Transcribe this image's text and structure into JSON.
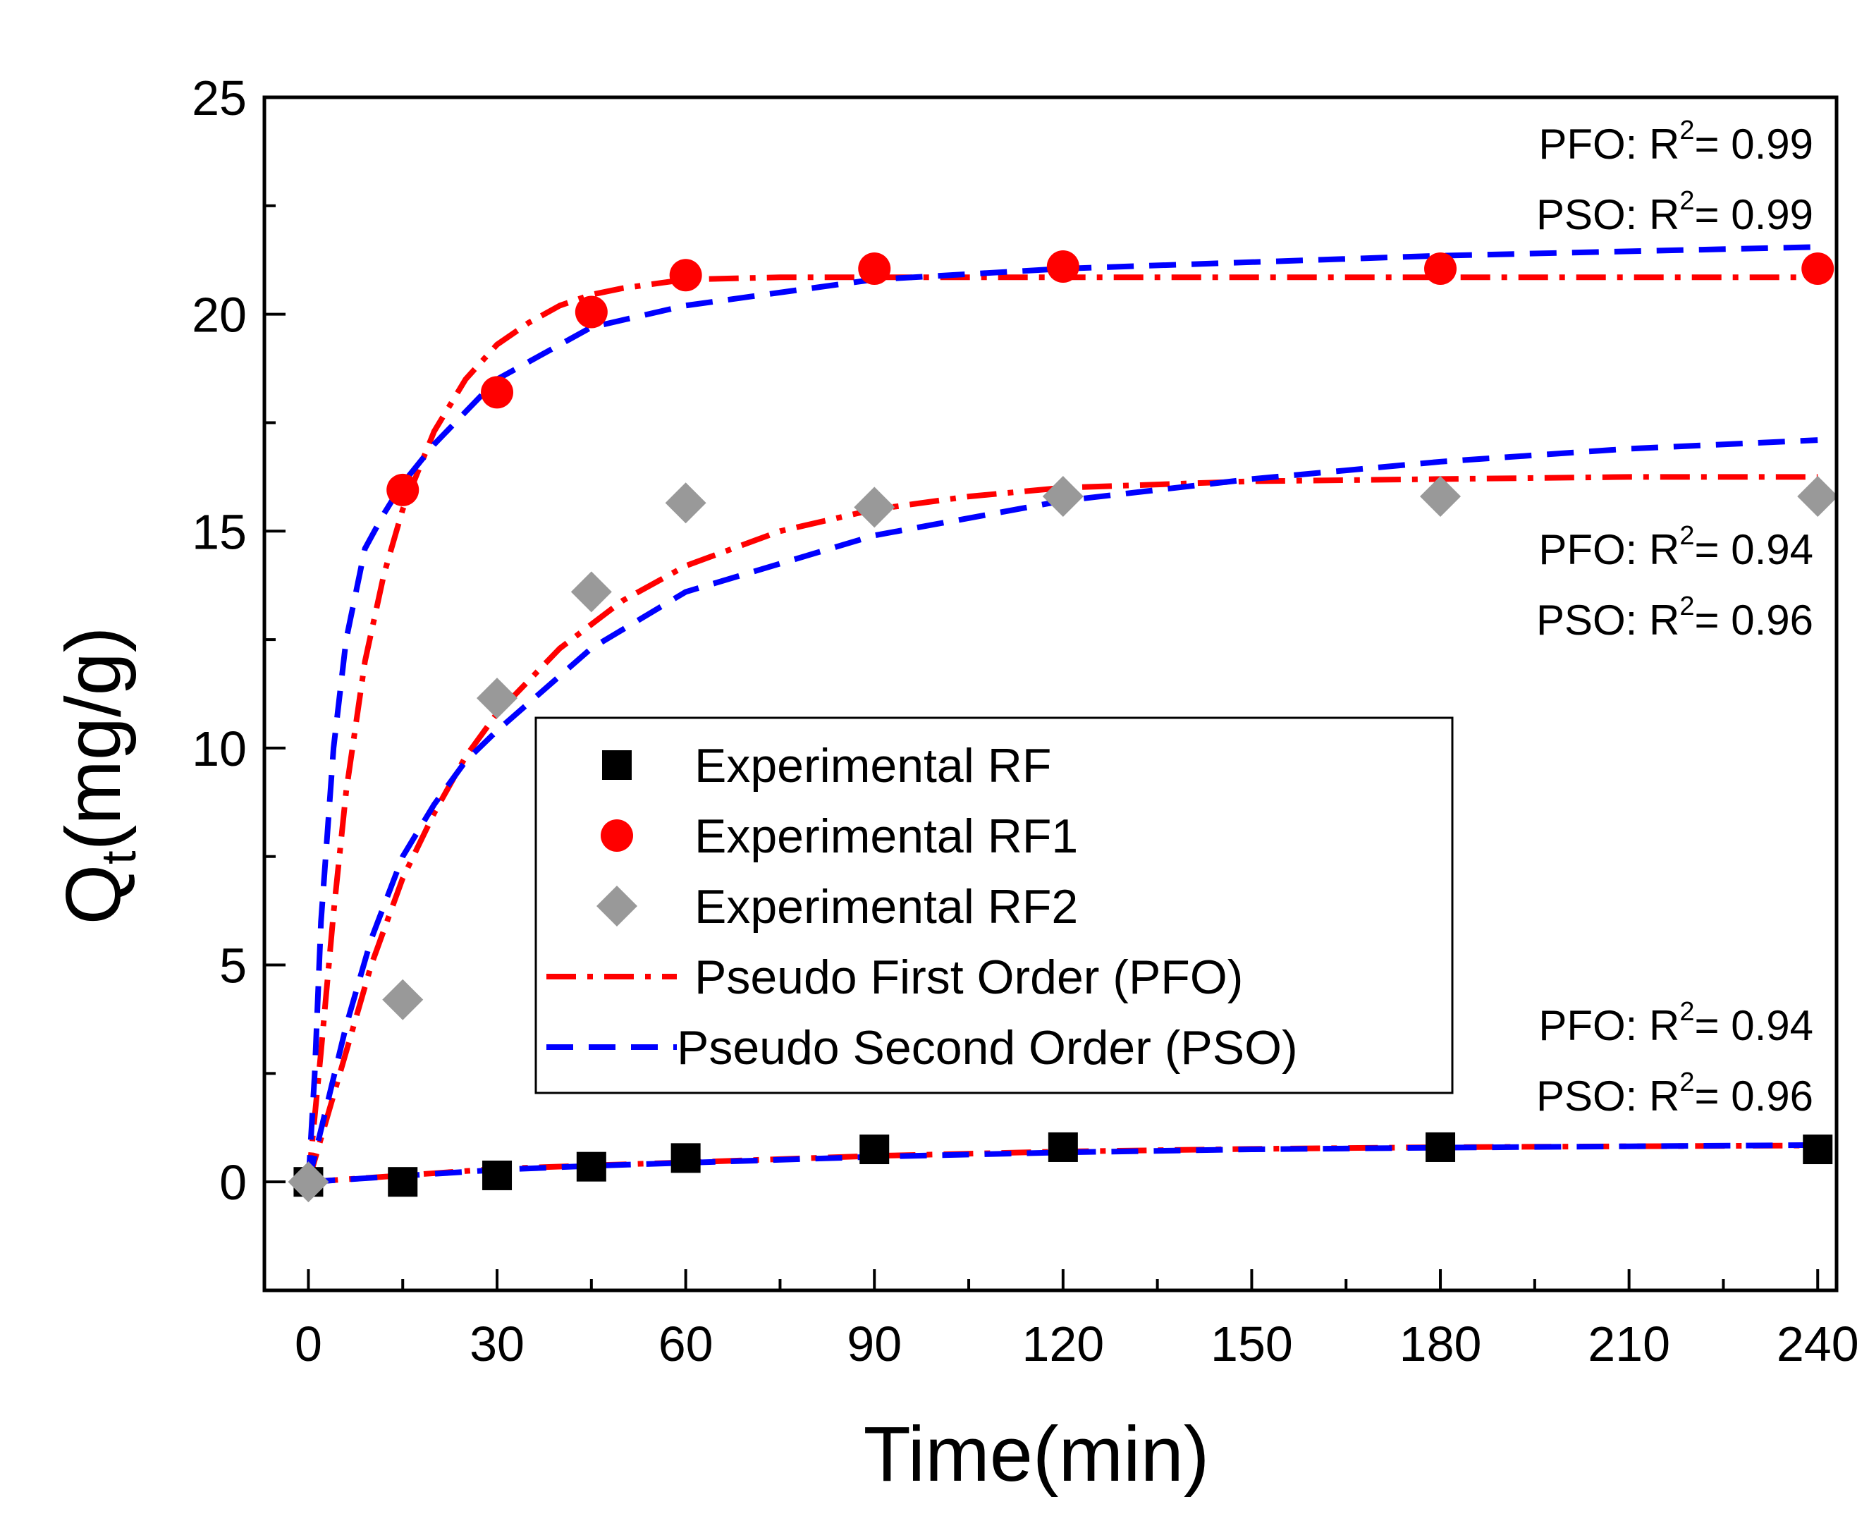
{
  "chart_data": {
    "type": "scatter",
    "xlabel": "Time(min)",
    "ylabel": {
      "main": "Q",
      "sub": "t",
      "rest": "(mg/g)"
    },
    "xlim": [
      -7,
      243
    ],
    "ylim": [
      -2.5,
      25
    ],
    "xticks": [
      0,
      30,
      60,
      90,
      120,
      150,
      180,
      210,
      240
    ],
    "yticks": [
      0,
      5,
      10,
      15,
      20,
      25
    ],
    "grid": false,
    "legend_position": "center",
    "series": [
      {
        "name": "Experimental RF",
        "marker": "square",
        "color": "#000000",
        "x": [
          0,
          15,
          30,
          45,
          60,
          90,
          120,
          180,
          240
        ],
        "y": [
          0,
          0.0,
          0.15,
          0.35,
          0.55,
          0.75,
          0.8,
          0.8,
          0.75
        ]
      },
      {
        "name": "Experimental RF1",
        "marker": "circle",
        "color": "#ff0000",
        "x": [
          15,
          30,
          45,
          60,
          90,
          120,
          180,
          240
        ],
        "y": [
          15.95,
          18.2,
          20.05,
          20.9,
          21.05,
          21.1,
          21.05,
          21.05
        ]
      },
      {
        "name": "Experimental RF2",
        "marker": "diamond",
        "color": "#999999",
        "x": [
          0,
          15,
          30,
          45,
          60,
          90,
          120,
          180,
          240
        ],
        "y": [
          0,
          4.2,
          11.15,
          13.6,
          15.65,
          15.55,
          15.8,
          15.8,
          15.8
        ]
      }
    ],
    "fit_legend": [
      {
        "name": "Pseudo First Order (PFO)",
        "color": "#ff0000",
        "style": "dash-dot"
      },
      {
        "name": "Pseudo Second Order (PSO)",
        "color": "#0000ff",
        "style": "dashed"
      }
    ],
    "fits": [
      {
        "model": "PFO",
        "dataset": "RF1",
        "color": "#ff0000",
        "style": "dash-dot",
        "x": [
          0,
          2,
          4,
          6,
          9,
          12,
          15,
          20,
          25,
          30,
          35,
          40,
          45,
          50,
          60,
          75,
          90,
          120,
          150,
          180,
          210,
          240
        ],
        "y": [
          0,
          3.0,
          6.2,
          9.0,
          12.0,
          14.0,
          15.5,
          17.3,
          18.5,
          19.3,
          19.8,
          20.2,
          20.45,
          20.6,
          20.8,
          20.85,
          20.85,
          20.85,
          20.85,
          20.85,
          20.85,
          20.85
        ]
      },
      {
        "model": "PSO",
        "dataset": "RF1",
        "color": "#0000ff",
        "style": "dashed",
        "x": [
          0,
          1,
          2,
          4,
          6,
          9,
          12,
          15,
          20,
          30,
          45,
          60,
          90,
          120,
          180,
          240
        ],
        "y": [
          0,
          2.5,
          6.0,
          10.0,
          12.5,
          14.6,
          15.4,
          16.1,
          17.0,
          18.5,
          19.7,
          20.2,
          20.8,
          21.05,
          21.35,
          21.55
        ]
      },
      {
        "model": "PFO",
        "dataset": "RF2",
        "color": "#ff0000",
        "style": "dash-dot",
        "x": [
          0,
          3,
          6,
          10,
          15,
          20,
          25,
          30,
          40,
          50,
          60,
          75,
          90,
          105,
          120,
          150,
          180,
          210,
          240
        ],
        "y": [
          0,
          1.5,
          3.0,
          5.0,
          7.0,
          8.5,
          9.8,
          10.8,
          12.3,
          13.4,
          14.2,
          15.0,
          15.5,
          15.8,
          16.0,
          16.15,
          16.2,
          16.25,
          16.25
        ]
      },
      {
        "model": "PSO",
        "dataset": "RF2",
        "color": "#0000ff",
        "style": "dashed",
        "x": [
          0,
          3,
          6,
          10,
          15,
          20,
          25,
          30,
          45,
          60,
          90,
          120,
          150,
          180,
          210,
          240
        ],
        "y": [
          0,
          1.8,
          3.6,
          5.6,
          7.5,
          8.7,
          9.7,
          10.4,
          12.3,
          13.6,
          14.9,
          15.7,
          16.2,
          16.6,
          16.9,
          17.1
        ]
      },
      {
        "model": "PFO",
        "dataset": "RF",
        "color": "#ff0000",
        "style": "dash-dot",
        "x": [
          0,
          15,
          30,
          45,
          60,
          90,
          120,
          150,
          180,
          210,
          240
        ],
        "y": [
          0,
          0.15,
          0.3,
          0.38,
          0.45,
          0.6,
          0.7,
          0.76,
          0.8,
          0.82,
          0.84
        ]
      },
      {
        "model": "PSO",
        "dataset": "RF",
        "color": "#0000ff",
        "style": "dashed",
        "x": [
          0,
          15,
          30,
          45,
          60,
          90,
          120,
          150,
          180,
          210,
          240
        ],
        "y": [
          0,
          0.14,
          0.28,
          0.37,
          0.44,
          0.58,
          0.68,
          0.75,
          0.79,
          0.82,
          0.85
        ]
      }
    ],
    "annotations": [
      {
        "model": "PFO",
        "r2": "= 0.99",
        "group": "RF1"
      },
      {
        "model": "PSO",
        "r2": "= 0.99",
        "group": "RF1"
      },
      {
        "model": "PFO",
        "r2": "= 0.94",
        "group": "RF2"
      },
      {
        "model": "PSO",
        "r2": "= 0.96",
        "group": "RF2"
      },
      {
        "model": "PFO",
        "r2": "= 0.94",
        "group": "RF"
      },
      {
        "model": "PSO",
        "r2": "= 0.96",
        "group": "RF"
      }
    ],
    "annotation_parts": {
      "sep": ": ",
      "r": "R",
      "sup": "2"
    }
  }
}
